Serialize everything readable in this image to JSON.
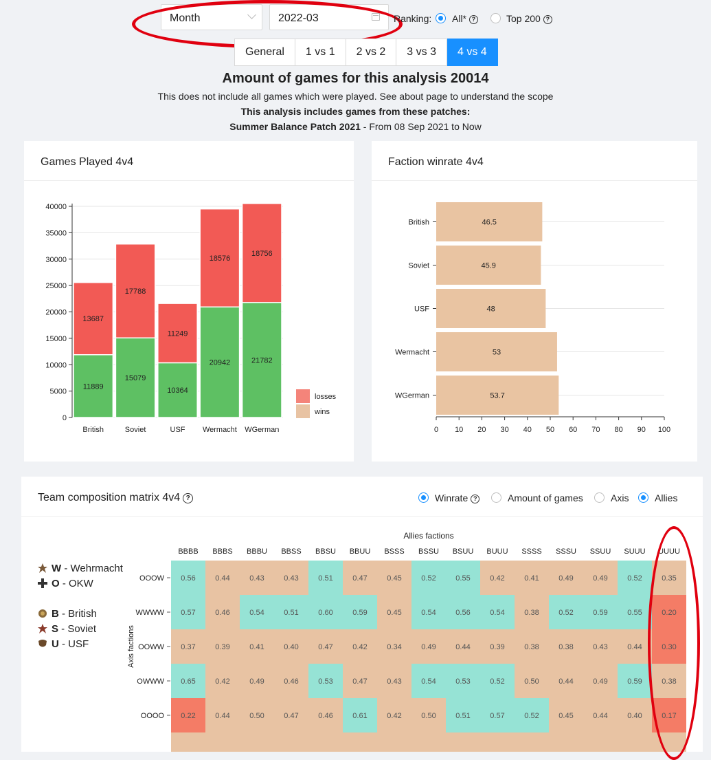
{
  "controls": {
    "period_select": "Month",
    "date_value": "2022-03",
    "ranking_label": "Ranking:",
    "ranking_all": "All*",
    "ranking_top": "Top 200",
    "ranking_selected": "All*"
  },
  "tabs": [
    {
      "label": "General",
      "active": false
    },
    {
      "label": "1 vs 1",
      "active": false
    },
    {
      "label": "2 vs 2",
      "active": false
    },
    {
      "label": "3 vs 3",
      "active": false
    },
    {
      "label": "4 vs 4",
      "active": true
    }
  ],
  "header": {
    "title": "Amount of games for this analysis 20014",
    "note": "This does not include all games which were played. See about page to understand the scope",
    "patches_heading": "This analysis includes games from these patches:",
    "patch_name": "Summer Balance Patch 2021",
    "patch_range": " - From 08 Sep 2021 to Now"
  },
  "colors": {
    "losses": "#f25a55",
    "wins_bar": "#5ec063",
    "wins_legend": "#e8c3a3",
    "losses_legend": "#f4847a",
    "winrate_bar": "#e9c4a2",
    "matrix_high": "#96e3d5",
    "matrix_mid": "#e8c3a3",
    "matrix_low": "#f47c66",
    "accent": "#1890ff",
    "annotation": "#e0000f"
  },
  "games_card": {
    "title": "Games Played 4v4"
  },
  "winrate_card": {
    "title": "Faction winrate 4v4"
  },
  "matrix_card": {
    "title": "Team composition matrix 4v4",
    "options": [
      {
        "label": "Winrate",
        "selected": true,
        "help": true
      },
      {
        "label": "Amount of games",
        "selected": false,
        "help": false
      },
      {
        "label": "Axis",
        "selected": false,
        "help": false
      },
      {
        "label": "Allies",
        "selected": true,
        "help": false
      }
    ],
    "faction_legend": [
      {
        "letter": "W",
        "name": " - Wehrmacht",
        "icon": "wehrmacht-icon"
      },
      {
        "letter": "O",
        "name": " - OKW",
        "icon": "okw-icon"
      },
      {
        "letter": "B",
        "name": " - British",
        "icon": "british-icon"
      },
      {
        "letter": "S",
        "name": " - Soviet",
        "icon": "soviet-icon"
      },
      {
        "letter": "U",
        "name": " - USF",
        "icon": "usf-icon"
      }
    ]
  },
  "chart_data": [
    {
      "type": "bar",
      "stacked": true,
      "title": "Games Played 4v4",
      "categories": [
        "British",
        "Soviet",
        "USF",
        "Wermacht",
        "WGerman"
      ],
      "series": [
        {
          "name": "wins",
          "values": [
            11889,
            15079,
            10364,
            20942,
            21782
          ]
        },
        {
          "name": "losses",
          "values": [
            13687,
            17788,
            11249,
            18576,
            18756
          ]
        }
      ],
      "legend_order": [
        "losses",
        "wins"
      ],
      "yticks": [
        "0",
        "5000",
        "10000",
        "15000",
        "20000",
        "25000",
        "30000",
        "35000",
        "40000"
      ],
      "ylim": [
        0,
        40000
      ],
      "grid": true,
      "legend": "bottom-right"
    },
    {
      "type": "bar",
      "orientation": "horizontal",
      "title": "Faction winrate 4v4",
      "categories": [
        "British",
        "Soviet",
        "USF",
        "Wermacht",
        "WGerman"
      ],
      "values": [
        46.5,
        45.9,
        48,
        53,
        53.7
      ],
      "xticks": [
        "0",
        "10",
        "20",
        "30",
        "40",
        "50",
        "60",
        "70",
        "80",
        "90",
        "100"
      ],
      "xlim": [
        0,
        100
      ],
      "grid": true
    },
    {
      "type": "heatmap",
      "title": "Team composition matrix 4v4",
      "xlabel": "Allies factions",
      "ylabel": "Axis factions",
      "x": [
        "BBBB",
        "BBBS",
        "BBBU",
        "BBSS",
        "BBSU",
        "BBUU",
        "BSSS",
        "BSSU",
        "BSUU",
        "BUUU",
        "SSSS",
        "SSSU",
        "SSUU",
        "SUUU",
        "UUUU"
      ],
      "y": [
        "OOOW",
        "WWWW",
        "OOWW",
        "OWWW",
        "OOOO"
      ],
      "values": [
        [
          "0.56",
          "0.44",
          "0.43",
          "0.43",
          "0.51",
          "0.47",
          "0.45",
          "0.52",
          "0.55",
          "0.42",
          "0.41",
          "0.49",
          "0.49",
          "0.52",
          "0.35"
        ],
        [
          "0.57",
          "0.46",
          "0.54",
          "0.51",
          "0.60",
          "0.59",
          "0.45",
          "0.54",
          "0.56",
          "0.54",
          "0.38",
          "0.52",
          "0.59",
          "0.55",
          "0.20"
        ],
        [
          "0.37",
          "0.39",
          "0.41",
          "0.40",
          "0.47",
          "0.42",
          "0.34",
          "0.49",
          "0.44",
          "0.39",
          "0.38",
          "0.38",
          "0.43",
          "0.44",
          "0.30"
        ],
        [
          "0.65",
          "0.42",
          "0.49",
          "0.46",
          "0.53",
          "0.47",
          "0.43",
          "0.54",
          "0.53",
          "0.52",
          "0.50",
          "0.44",
          "0.49",
          "0.59",
          "0.38"
        ],
        [
          "0.22",
          "0.44",
          "0.50",
          "0.47",
          "0.46",
          "0.61",
          "0.42",
          "0.50",
          "0.51",
          "0.57",
          "0.52",
          "0.45",
          "0.44",
          "0.40",
          "0.17"
        ]
      ]
    }
  ]
}
